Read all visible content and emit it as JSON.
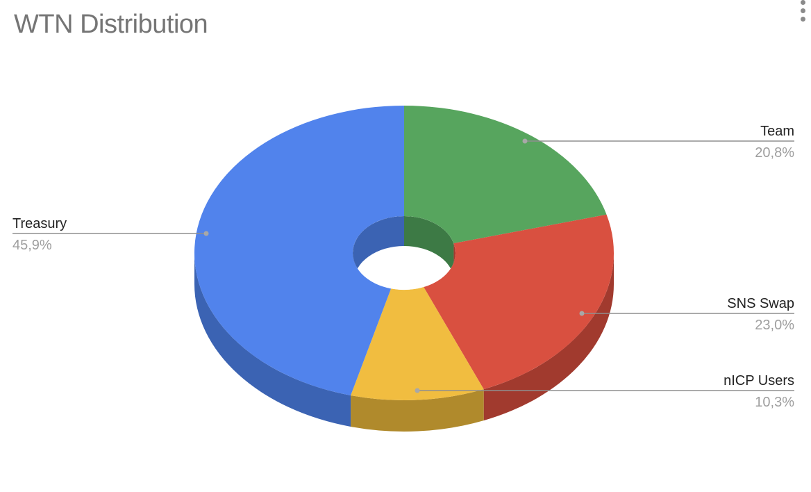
{
  "chart_data": {
    "type": "pie",
    "style": "3d-donut",
    "title": "WTN Distribution",
    "slices": [
      {
        "label": "Team",
        "percent": "20,8%",
        "value": 20.8,
        "color": "#57a55e",
        "side_color": "#3d7a45"
      },
      {
        "label": "SNS Swap",
        "percent": "23,0%",
        "value": 23.0,
        "color": "#d95040",
        "side_color": "#a13a2e"
      },
      {
        "label": "nICP Users",
        "percent": "10,3%",
        "value": 10.3,
        "color": "#f1bd40",
        "side_color": "#b08a2c"
      },
      {
        "label": "Treasury",
        "percent": "45,9%",
        "value": 45.9,
        "color": "#5183ec",
        "side_color": "#3b63b3"
      }
    ],
    "legend": "none"
  },
  "menu": {
    "icon": "more-vert-icon"
  }
}
